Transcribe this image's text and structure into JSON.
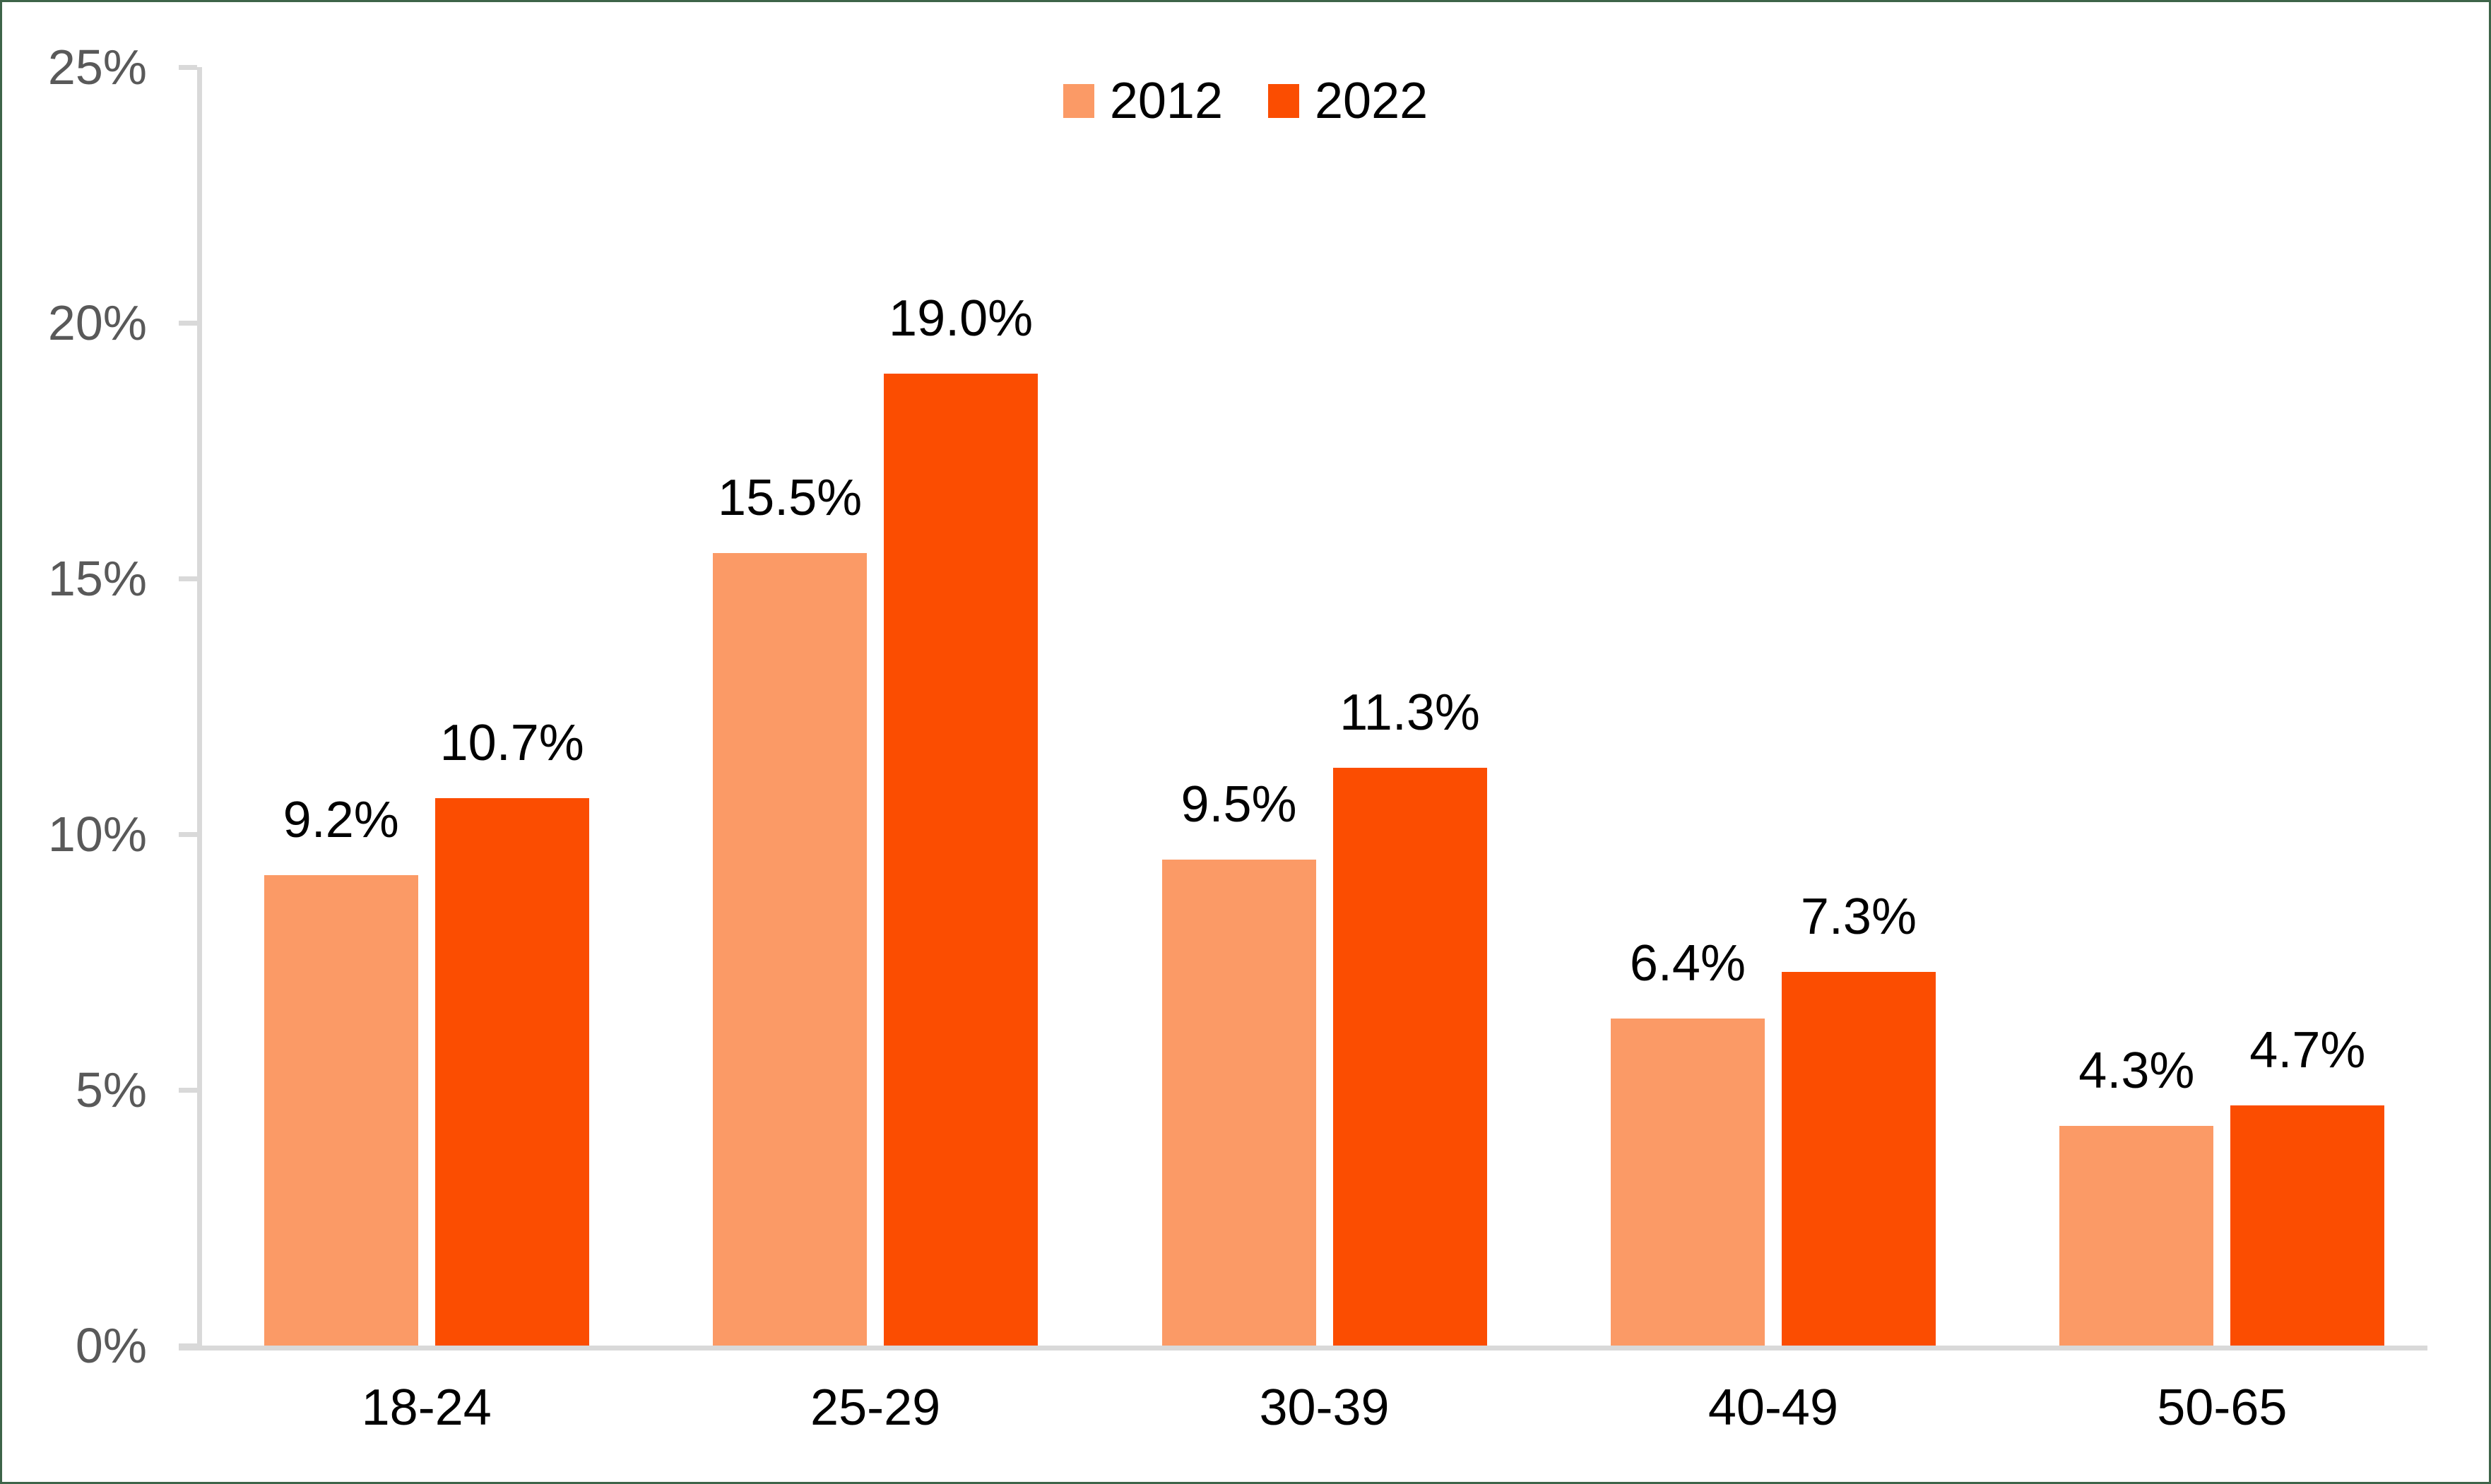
{
  "frame": {
    "border_color": "#3E6449",
    "background": "#FFFFFF"
  },
  "chart_data": {
    "type": "bar",
    "categories": [
      "18-24",
      "25-29",
      "30-39",
      "40-49",
      "50-65"
    ],
    "series": [
      {
        "name": "2012",
        "color": "#FB9A66",
        "values": [
          9.2,
          15.5,
          9.5,
          6.4,
          4.3
        ],
        "labels": [
          "9.2%",
          "15.5%",
          "9.5%",
          "6.4%",
          "4.3%"
        ]
      },
      {
        "name": "2022",
        "color": "#FB4D01",
        "values": [
          10.7,
          19.0,
          11.3,
          7.3,
          4.7
        ],
        "labels": [
          "10.7%",
          "19.0%",
          "11.3%",
          "7.3%",
          "4.7%"
        ]
      }
    ],
    "title": "",
    "xlabel": "",
    "ylabel": "",
    "ylim": [
      0,
      25
    ],
    "yticks": [
      {
        "value": 0,
        "label": "0%"
      },
      {
        "value": 5,
        "label": "5%"
      },
      {
        "value": 10,
        "label": "10%"
      },
      {
        "value": 15,
        "label": "15%"
      },
      {
        "value": 20,
        "label": "20%"
      },
      {
        "value": 25,
        "label": "25%"
      }
    ],
    "grid": false,
    "legend_position": "top-center",
    "axis_line_color": "#D9D9D9",
    "tick_label_color": "#595959",
    "data_label_color": "#000000",
    "category_label_color": "#000000"
  }
}
